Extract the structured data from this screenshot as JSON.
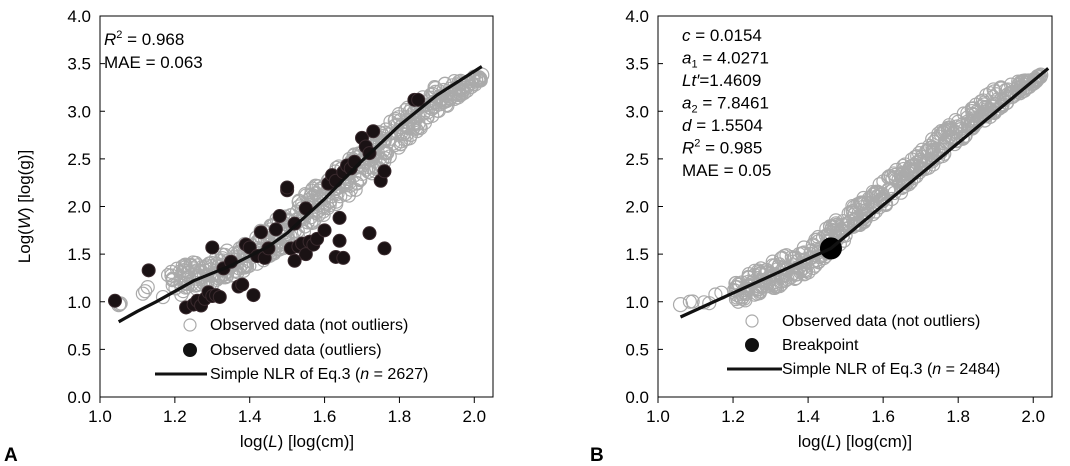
{
  "chart_data": [
    {
      "type": "scatter",
      "panel_label": "A",
      "xlabel": "log(L) [log(cm)]",
      "xlabel_parts": {
        "pre": "log(",
        "var": "L",
        "post": ") [log(cm)]"
      },
      "ylabel": "Log(W) [log(g)]",
      "ylabel_parts": {
        "pre": "Log(",
        "var": "W",
        "post": ") [log(g)]"
      },
      "xlim": [
        1.0,
        2.05
      ],
      "ylim": [
        0.0,
        4.0
      ],
      "x_ticks": [
        "1.0",
        "1.2",
        "1.4",
        "1.6",
        "1.8",
        "2.0"
      ],
      "y_ticks": [
        "0.0",
        "0.5",
        "1.0",
        "1.5",
        "2.0",
        "2.5",
        "3.0",
        "3.5",
        "4.0"
      ],
      "grid": false,
      "stats": [
        {
          "label": "R",
          "sup": "2",
          "value": " = 0.968",
          "italic": true
        },
        {
          "label": "MAE",
          "value": " = 0.063",
          "italic": false
        }
      ],
      "legend_position": "bottom-right",
      "legend": [
        {
          "marker": "open-circle",
          "text": "Observed data (not outliers)"
        },
        {
          "marker": "filled-circle",
          "text": "Observed data (outliers)"
        },
        {
          "marker": "line",
          "text_pre": "Simple NLR of Eq.3 (",
          "text_var": "n",
          "text_post": " = 2627)"
        }
      ],
      "series": [
        {
          "name": "Observed data (not outliers)",
          "kind": "open-circle-band",
          "band": [
            [
              1.05,
              0.97,
              0.97
            ],
            [
              1.18,
              1.02,
              1.35
            ],
            [
              1.3,
              1.18,
              1.48
            ],
            [
              1.4,
              1.35,
              1.65
            ],
            [
              1.5,
              1.58,
              1.98
            ],
            [
              1.6,
              1.9,
              2.3
            ],
            [
              1.7,
              2.22,
              2.63
            ],
            [
              1.8,
              2.62,
              2.98
            ],
            [
              1.9,
              2.97,
              3.28
            ],
            [
              2.02,
              3.33,
              3.38
            ]
          ]
        },
        {
          "name": "Observed data (outliers)",
          "kind": "filled-circle",
          "points": [
            [
              1.04,
              1.01
            ],
            [
              1.13,
              1.33
            ],
            [
              1.23,
              0.94
            ],
            [
              1.25,
              0.97
            ],
            [
              1.26,
              1.01
            ],
            [
              1.27,
              0.96
            ],
            [
              1.28,
              1.03
            ],
            [
              1.29,
              1.1
            ],
            [
              1.3,
              1.06
            ],
            [
              1.31,
              1.07
            ],
            [
              1.32,
              1.05
            ],
            [
              1.3,
              1.57
            ],
            [
              1.33,
              1.35
            ],
            [
              1.35,
              1.42
            ],
            [
              1.37,
              1.16
            ],
            [
              1.38,
              1.18
            ],
            [
              1.39,
              1.6
            ],
            [
              1.4,
              1.57
            ],
            [
              1.41,
              1.07
            ],
            [
              1.42,
              1.48
            ],
            [
              1.43,
              1.73
            ],
            [
              1.44,
              1.46
            ],
            [
              1.45,
              1.56
            ],
            [
              1.47,
              1.76
            ],
            [
              1.48,
              1.9
            ],
            [
              1.5,
              2.17
            ],
            [
              1.5,
              2.2
            ],
            [
              1.51,
              1.56
            ],
            [
              1.52,
              1.43
            ],
            [
              1.52,
              1.82
            ],
            [
              1.53,
              1.58
            ],
            [
              1.54,
              1.61
            ],
            [
              1.55,
              1.98
            ],
            [
              1.55,
              1.5
            ],
            [
              1.56,
              1.63
            ],
            [
              1.57,
              1.6
            ],
            [
              1.58,
              1.66
            ],
            [
              1.6,
              1.75
            ],
            [
              1.61,
              2.24
            ],
            [
              1.62,
              2.33
            ],
            [
              1.63,
              2.27
            ],
            [
              1.63,
              1.47
            ],
            [
              1.64,
              1.88
            ],
            [
              1.64,
              1.64
            ],
            [
              1.65,
              1.46
            ],
            [
              1.65,
              2.36
            ],
            [
              1.66,
              2.43
            ],
            [
              1.67,
              2.4
            ],
            [
              1.68,
              2.47
            ],
            [
              1.7,
              2.72
            ],
            [
              1.71,
              2.63
            ],
            [
              1.72,
              2.56
            ],
            [
              1.73,
              2.79
            ],
            [
              1.72,
              1.72
            ],
            [
              1.75,
              2.27
            ],
            [
              1.76,
              1.56
            ],
            [
              1.76,
              2.37
            ],
            [
              1.84,
              3.12
            ],
            [
              1.85,
              3.12
            ]
          ]
        },
        {
          "name": "Simple NLR of Eq.3",
          "kind": "line",
          "points": [
            [
              1.05,
              0.79
            ],
            [
              1.1,
              0.9
            ],
            [
              1.15,
              1.0
            ],
            [
              1.2,
              1.11
            ],
            [
              1.25,
              1.22
            ],
            [
              1.3,
              1.3
            ],
            [
              1.35,
              1.38
            ],
            [
              1.4,
              1.48
            ],
            [
              1.45,
              1.58
            ],
            [
              1.5,
              1.72
            ],
            [
              1.55,
              1.9
            ],
            [
              1.6,
              2.08
            ],
            [
              1.7,
              2.48
            ],
            [
              1.8,
              2.85
            ],
            [
              1.9,
              3.17
            ],
            [
              2.02,
              3.47
            ]
          ]
        }
      ]
    },
    {
      "type": "scatter",
      "panel_label": "B",
      "xlabel": "log(L) [log(cm)]",
      "xlabel_parts": {
        "pre": "log(",
        "var": "L",
        "post": ") [log(cm)]"
      },
      "xlim": [
        1.0,
        2.05
      ],
      "ylim": [
        0.0,
        4.0
      ],
      "x_ticks": [
        "1.0",
        "1.2",
        "1.4",
        "1.6",
        "1.8",
        "2.0"
      ],
      "y_ticks": [
        "0.0",
        "0.5",
        "1.0",
        "1.5",
        "2.0",
        "2.5",
        "3.0",
        "3.5",
        "4.0"
      ],
      "grid": false,
      "stats": [
        {
          "label": "c",
          "value": " = 0.0154",
          "italic": true
        },
        {
          "label": "a",
          "sub": "1",
          "value": " = 4.0271",
          "italic": true
        },
        {
          "label": "Lt′",
          "value": "=1.4609",
          "italic": true
        },
        {
          "label": "a",
          "sub": "2",
          "value": " = 7.8461",
          "italic": true
        },
        {
          "label": "d",
          "value": " = 1.5504",
          "italic": true
        },
        {
          "label": "R",
          "sup": "2",
          "value": " = 0.985",
          "italic": true
        },
        {
          "label": "MAE",
          "value": " = 0.05",
          "italic": false
        }
      ],
      "legend_position": "bottom-right",
      "legend": [
        {
          "marker": "open-circle",
          "text": "Observed data (not outliers)"
        },
        {
          "marker": "filled-circle",
          "text": "Breakpoint"
        },
        {
          "marker": "line",
          "text_pre": "Simple NLR of Eq.3 (",
          "text_var": "n",
          "text_post": " = 2484)"
        }
      ],
      "series": [
        {
          "name": "Observed data (not outliers)",
          "kind": "open-circle-band",
          "band": [
            [
              1.06,
              0.97,
              0.97
            ],
            [
              1.2,
              0.96,
              1.2
            ],
            [
              1.3,
              1.12,
              1.42
            ],
            [
              1.4,
              1.3,
              1.6
            ],
            [
              1.5,
              1.65,
              1.95
            ],
            [
              1.6,
              1.97,
              2.27
            ],
            [
              1.7,
              2.32,
              2.6
            ],
            [
              1.8,
              2.67,
              2.95
            ],
            [
              1.9,
              2.98,
              3.25
            ],
            [
              2.02,
              3.34,
              3.38
            ]
          ]
        },
        {
          "name": "Breakpoint",
          "kind": "breakpoint",
          "points": [
            [
              1.4609,
              1.56
            ]
          ]
        },
        {
          "name": "Simple NLR of Eq.3",
          "kind": "line",
          "points": [
            [
              1.06,
              0.84
            ],
            [
              1.4609,
              1.56
            ],
            [
              2.04,
              3.45
            ]
          ]
        }
      ]
    }
  ]
}
